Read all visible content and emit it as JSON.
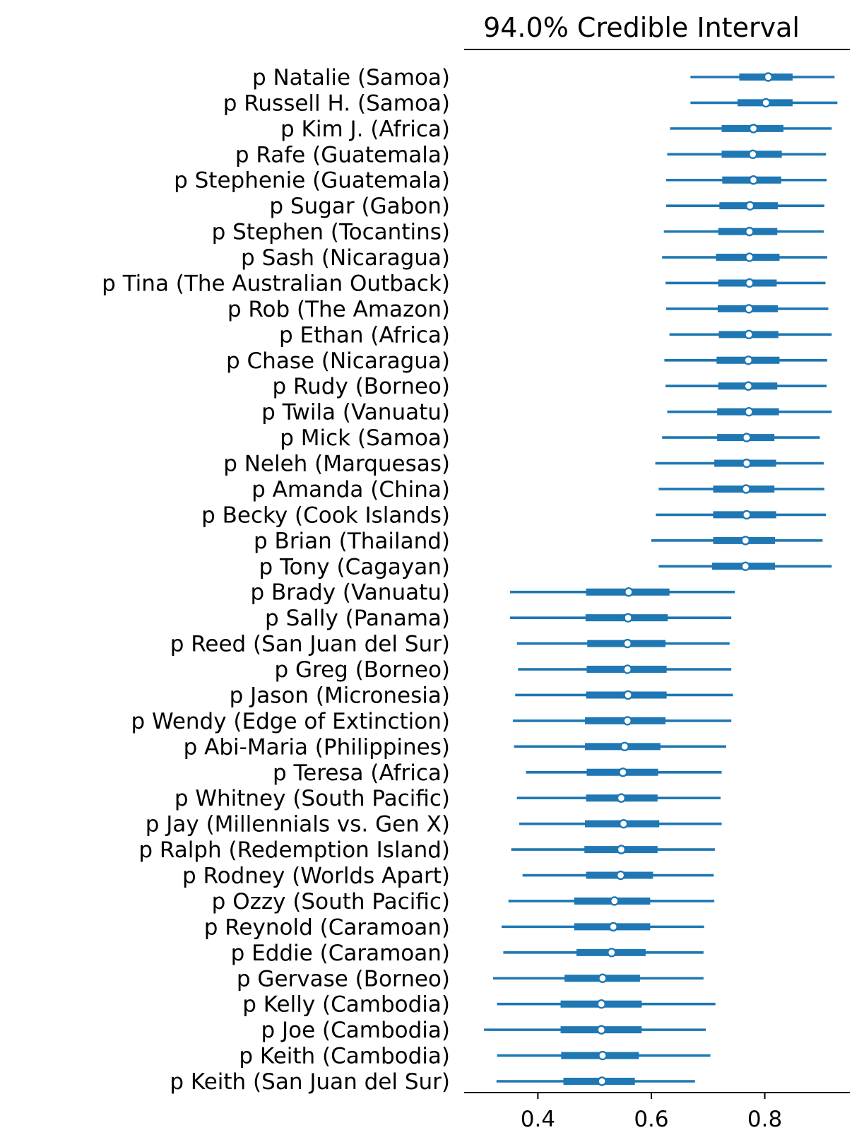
{
  "chart_data": {
    "type": "forest",
    "title": "94.0% Credible Interval",
    "xlim": [
      0.27,
      0.95
    ],
    "xticks": [
      0.4,
      0.6,
      0.8
    ],
    "xtick_labels": [
      "0.4",
      "0.6",
      "0.8"
    ],
    "colors": {
      "series": "#1f77b4",
      "marker_fill": "#ffffff",
      "axis": "#000000"
    },
    "rows": [
      {
        "label": "p Natalie (Samoa)",
        "hdi_low": 0.669,
        "iqr_low": 0.755,
        "median": 0.806,
        "iqr_high": 0.849,
        "hdi_high": 0.923
      },
      {
        "label": "p Russell H. (Samoa)",
        "hdi_low": 0.669,
        "iqr_low": 0.752,
        "median": 0.802,
        "iqr_high": 0.849,
        "hdi_high": 0.928
      },
      {
        "label": "p Kim J. (Africa)",
        "hdi_low": 0.633,
        "iqr_low": 0.724,
        "median": 0.78,
        "iqr_high": 0.833,
        "hdi_high": 0.918
      },
      {
        "label": "p Rafe (Guatemala)",
        "hdi_low": 0.628,
        "iqr_low": 0.724,
        "median": 0.779,
        "iqr_high": 0.83,
        "hdi_high": 0.908
      },
      {
        "label": "p Stephenie (Guatemala)",
        "hdi_low": 0.626,
        "iqr_low": 0.725,
        "median": 0.78,
        "iqr_high": 0.829,
        "hdi_high": 0.909
      },
      {
        "label": "p Sugar (Gabon)",
        "hdi_low": 0.626,
        "iqr_low": 0.72,
        "median": 0.774,
        "iqr_high": 0.823,
        "hdi_high": 0.905
      },
      {
        "label": "p Stephen (Tocantins)",
        "hdi_low": 0.622,
        "iqr_low": 0.718,
        "median": 0.773,
        "iqr_high": 0.822,
        "hdi_high": 0.904
      },
      {
        "label": "p Sash (Nicaragua)",
        "hdi_low": 0.619,
        "iqr_low": 0.714,
        "median": 0.773,
        "iqr_high": 0.826,
        "hdi_high": 0.91
      },
      {
        "label": "p Tina (The Australian Outback)",
        "hdi_low": 0.625,
        "iqr_low": 0.718,
        "median": 0.773,
        "iqr_high": 0.821,
        "hdi_high": 0.907
      },
      {
        "label": "p Rob (The Amazon)",
        "hdi_low": 0.626,
        "iqr_low": 0.717,
        "median": 0.772,
        "iqr_high": 0.823,
        "hdi_high": 0.912
      },
      {
        "label": "p Ethan (Africa)",
        "hdi_low": 0.632,
        "iqr_low": 0.719,
        "median": 0.772,
        "iqr_high": 0.824,
        "hdi_high": 0.918
      },
      {
        "label": "p Chase (Nicaragua)",
        "hdi_low": 0.623,
        "iqr_low": 0.715,
        "median": 0.771,
        "iqr_high": 0.826,
        "hdi_high": 0.91
      },
      {
        "label": "p Rudy (Borneo)",
        "hdi_low": 0.625,
        "iqr_low": 0.718,
        "median": 0.771,
        "iqr_high": 0.822,
        "hdi_high": 0.909
      },
      {
        "label": "p Twila (Vanuatu)",
        "hdi_low": 0.628,
        "iqr_low": 0.716,
        "median": 0.772,
        "iqr_high": 0.825,
        "hdi_high": 0.918
      },
      {
        "label": "p Mick (Samoa)",
        "hdi_low": 0.619,
        "iqr_low": 0.716,
        "median": 0.768,
        "iqr_high": 0.817,
        "hdi_high": 0.897
      },
      {
        "label": "p Neleh (Marquesas)",
        "hdi_low": 0.607,
        "iqr_low": 0.711,
        "median": 0.768,
        "iqr_high": 0.82,
        "hdi_high": 0.904
      },
      {
        "label": "p Amanda (China)",
        "hdi_low": 0.613,
        "iqr_low": 0.709,
        "median": 0.767,
        "iqr_high": 0.817,
        "hdi_high": 0.905
      },
      {
        "label": "p Becky (Cook Islands)",
        "hdi_low": 0.608,
        "iqr_low": 0.709,
        "median": 0.768,
        "iqr_high": 0.82,
        "hdi_high": 0.908
      },
      {
        "label": "p Brian (Thailand)",
        "hdi_low": 0.6,
        "iqr_low": 0.709,
        "median": 0.766,
        "iqr_high": 0.818,
        "hdi_high": 0.902
      },
      {
        "label": "p Tony (Cagayan)",
        "hdi_low": 0.613,
        "iqr_low": 0.707,
        "median": 0.766,
        "iqr_high": 0.818,
        "hdi_high": 0.918
      },
      {
        "label": "p Brady (Vanuatu)",
        "hdi_low": 0.351,
        "iqr_low": 0.485,
        "median": 0.56,
        "iqr_high": 0.632,
        "hdi_high": 0.747
      },
      {
        "label": "p Sally (Panama)",
        "hdi_low": 0.351,
        "iqr_low": 0.484,
        "median": 0.559,
        "iqr_high": 0.629,
        "hdi_high": 0.741
      },
      {
        "label": "p Reed (San Juan del Sur)",
        "hdi_low": 0.363,
        "iqr_low": 0.487,
        "median": 0.558,
        "iqr_high": 0.625,
        "hdi_high": 0.738
      },
      {
        "label": "p Greg (Borneo)",
        "hdi_low": 0.365,
        "iqr_low": 0.486,
        "median": 0.558,
        "iqr_high": 0.627,
        "hdi_high": 0.741
      },
      {
        "label": "p Jason (Micronesia)",
        "hdi_low": 0.36,
        "iqr_low": 0.485,
        "median": 0.559,
        "iqr_high": 0.627,
        "hdi_high": 0.744
      },
      {
        "label": "p Wendy (Edge of Extinction)",
        "hdi_low": 0.356,
        "iqr_low": 0.483,
        "median": 0.558,
        "iqr_high": 0.625,
        "hdi_high": 0.741
      },
      {
        "label": "p Abi-Maria (Philippines)",
        "hdi_low": 0.358,
        "iqr_low": 0.483,
        "median": 0.553,
        "iqr_high": 0.616,
        "hdi_high": 0.732
      },
      {
        "label": "p Teresa (Africa)",
        "hdi_low": 0.379,
        "iqr_low": 0.486,
        "median": 0.55,
        "iqr_high": 0.612,
        "hdi_high": 0.724
      },
      {
        "label": "p Whitney (South Pacific)",
        "hdi_low": 0.363,
        "iqr_low": 0.485,
        "median": 0.547,
        "iqr_high": 0.611,
        "hdi_high": 0.722
      },
      {
        "label": "p Jay (Millennials vs. Gen X)",
        "hdi_low": 0.367,
        "iqr_low": 0.483,
        "median": 0.551,
        "iqr_high": 0.614,
        "hdi_high": 0.724
      },
      {
        "label": "p Ralph (Redemption Island)",
        "hdi_low": 0.353,
        "iqr_low": 0.482,
        "median": 0.547,
        "iqr_high": 0.611,
        "hdi_high": 0.712
      },
      {
        "label": "p Rodney (Worlds Apart)",
        "hdi_low": 0.373,
        "iqr_low": 0.485,
        "median": 0.546,
        "iqr_high": 0.603,
        "hdi_high": 0.71
      },
      {
        "label": "p Ozzy (South Pacific)",
        "hdi_low": 0.348,
        "iqr_low": 0.464,
        "median": 0.535,
        "iqr_high": 0.598,
        "hdi_high": 0.711
      },
      {
        "label": "p Reynold (Caramoan)",
        "hdi_low": 0.336,
        "iqr_low": 0.464,
        "median": 0.533,
        "iqr_high": 0.598,
        "hdi_high": 0.693
      },
      {
        "label": "p Eddie (Caramoan)",
        "hdi_low": 0.339,
        "iqr_low": 0.468,
        "median": 0.53,
        "iqr_high": 0.59,
        "hdi_high": 0.692
      },
      {
        "label": "p Gervase (Borneo)",
        "hdi_low": 0.321,
        "iqr_low": 0.447,
        "median": 0.514,
        "iqr_high": 0.58,
        "hdi_high": 0.692
      },
      {
        "label": "p Kelly (Cambodia)",
        "hdi_low": 0.328,
        "iqr_low": 0.44,
        "median": 0.512,
        "iqr_high": 0.583,
        "hdi_high": 0.713
      },
      {
        "label": "p Joe (Cambodia)",
        "hdi_low": 0.305,
        "iqr_low": 0.44,
        "median": 0.512,
        "iqr_high": 0.583,
        "hdi_high": 0.696
      },
      {
        "label": "p Keith (Cambodia)",
        "hdi_low": 0.328,
        "iqr_low": 0.441,
        "median": 0.514,
        "iqr_high": 0.578,
        "hdi_high": 0.704
      },
      {
        "label": "p Keith (San Juan del Sur)",
        "hdi_low": 0.327,
        "iqr_low": 0.445,
        "median": 0.513,
        "iqr_high": 0.571,
        "hdi_high": 0.677
      }
    ]
  }
}
